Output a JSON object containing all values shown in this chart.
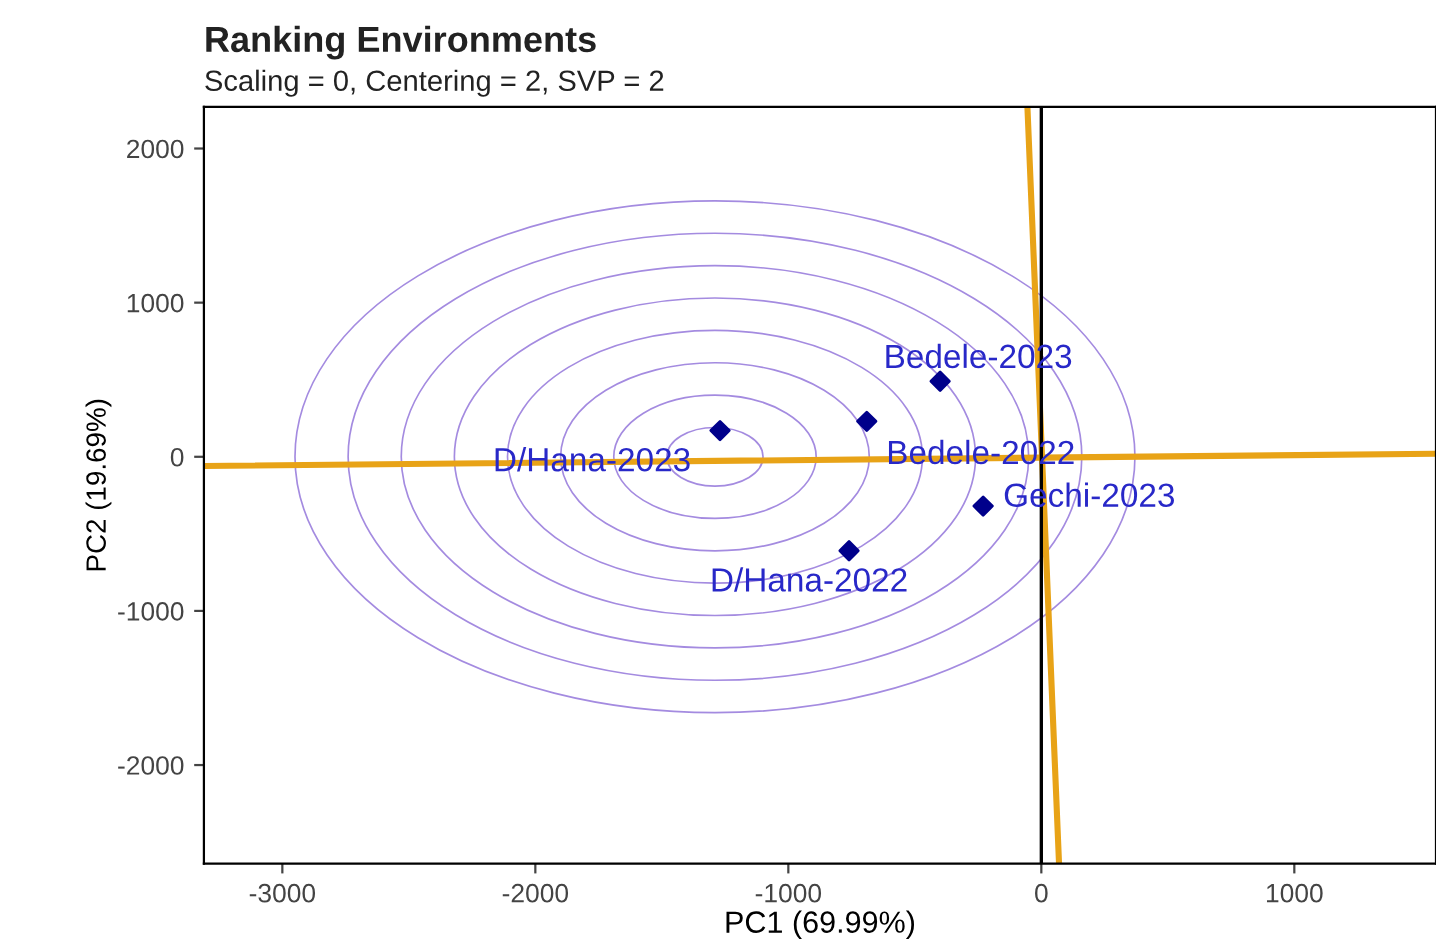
{
  "chart_data": {
    "type": "scatter",
    "title": "Ranking Environments",
    "subtitle": "Scaling = 0, Centering = 2, SVP = 2",
    "xlabel": "PC1 (69.99%)",
    "ylabel": "PC2 (19.69%)",
    "xlim": [
      -3310,
      1560
    ],
    "ylim": [
      -2640,
      2270
    ],
    "xticks": [
      -3000,
      -2000,
      -1000,
      0,
      1000
    ],
    "yticks": [
      -2000,
      -1000,
      0,
      1000,
      2000
    ],
    "grid": false,
    "legend": false,
    "ref_lines": [
      {
        "axis": "x",
        "value": 0,
        "color": "#000000"
      }
    ],
    "series": [
      {
        "type": "line",
        "color": "#e8a317",
        "x": [
          -3310,
          1560
        ],
        "values": [
          -60,
          20
        ]
      },
      {
        "type": "line",
        "color": "#e8a317",
        "x": [
          -55,
          70
        ],
        "values": [
          2270,
          -2640
        ]
      },
      {
        "color": "#00008b",
        "marker": "diamond",
        "x": [
          -1270,
          -690,
          -400,
          -230,
          -760
        ],
        "values": [
          170,
          230,
          490,
          -320,
          -610
        ]
      }
    ],
    "annotations": [
      {
        "text": "D/Hana-2023",
        "x": -1270,
        "y": 170
      },
      {
        "text": "Bedele-2022",
        "x": -690,
        "y": 230
      },
      {
        "text": "Bedele-2023",
        "x": -400,
        "y": 490
      },
      {
        "text": "Gechi-2023",
        "x": -230,
        "y": -320
      },
      {
        "text": "D/Hana-2022",
        "x": -760,
        "y": -610
      }
    ]
  }
}
